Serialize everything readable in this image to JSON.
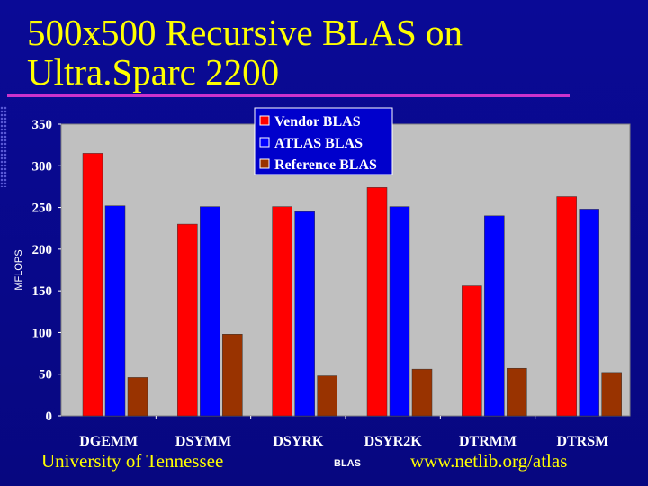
{
  "slide": {
    "title_line1": "500x500 Recursive BLAS on",
    "title_line2": "Ultra.Sparc 2200",
    "footer_left": "University of Tennessee",
    "footer_right": "www.netlib.org/atlas"
  },
  "colors": {
    "background": "#0a0a8c",
    "title": "#ffff00",
    "rule": "#cc33cc",
    "plot_area": "#c0c0c0"
  },
  "chart_data": {
    "type": "bar",
    "title": "",
    "xlabel": "BLAS",
    "ylabel": "MFLOPS",
    "ylim": [
      0,
      350
    ],
    "yticks": [
      0,
      50,
      100,
      150,
      200,
      250,
      300,
      350
    ],
    "grid": false,
    "legend_position": "top-center",
    "categories": [
      "DGEMM",
      "DSYMM",
      "DSYRK",
      "DSYR2K",
      "DTRMM",
      "DTRSM"
    ],
    "series": [
      {
        "name": "Vendor BLAS",
        "color": "#ff0000",
        "values": [
          315,
          230,
          251,
          274,
          156,
          263
        ]
      },
      {
        "name": "ATLAS BLAS",
        "color": "#0000ff",
        "values": [
          252,
          251,
          245,
          251,
          240,
          248
        ]
      },
      {
        "name": "Reference BLAS",
        "color": "#993300",
        "values": [
          46,
          98,
          48,
          56,
          57,
          52
        ]
      }
    ]
  }
}
